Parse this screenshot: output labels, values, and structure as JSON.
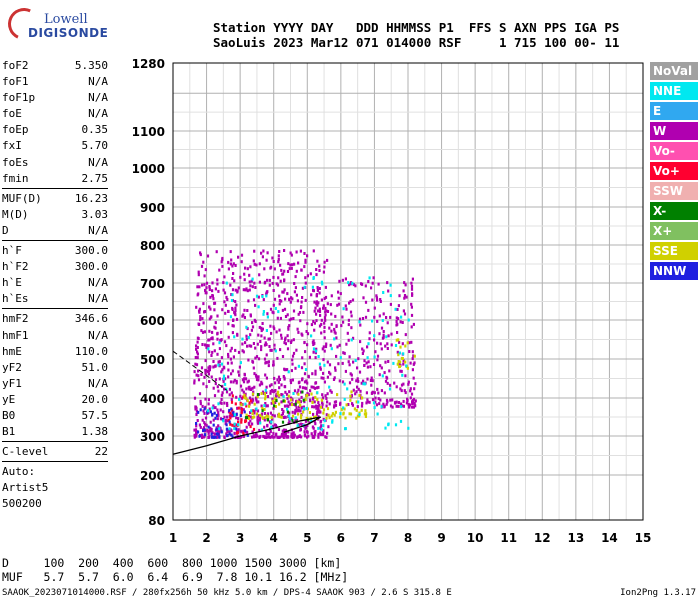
{
  "logo": {
    "line1": "Lowell",
    "line2": "DIGISONDE"
  },
  "header": {
    "line1": "Station YYYY DAY   DDD HHMMSS P1  FFS S AXN PPS IGA PS",
    "line2": "SaoLuis 2023 Mar12 071 014000 RSF     1 715 100 00- 11"
  },
  "params": {
    "group1": [
      {
        "label": "foF2",
        "value": "5.350"
      },
      {
        "label": "foF1",
        "value": "N/A"
      },
      {
        "label": "foF1p",
        "value": "N/A"
      },
      {
        "label": "foE",
        "value": "N/A"
      },
      {
        "label": "foEp",
        "value": "0.35"
      },
      {
        "label": "fxI",
        "value": "5.70"
      },
      {
        "label": "foEs",
        "value": "N/A"
      },
      {
        "label": "fmin",
        "value": "2.75"
      }
    ],
    "group2": [
      {
        "label": "MUF(D)",
        "value": "16.23"
      },
      {
        "label": "M(D)",
        "value": "3.03"
      },
      {
        "label": "D",
        "value": "N/A"
      }
    ],
    "group3": [
      {
        "label": "h`F",
        "value": "300.0"
      },
      {
        "label": "h`F2",
        "value": "300.0"
      },
      {
        "label": "h`E",
        "value": "N/A"
      },
      {
        "label": "h`Es",
        "value": "N/A"
      }
    ],
    "group4": [
      {
        "label": "hmF2",
        "value": "346.6"
      },
      {
        "label": "hmF1",
        "value": "N/A"
      },
      {
        "label": "hmE",
        "value": "110.0"
      },
      {
        "label": "yF2",
        "value": "51.0"
      },
      {
        "label": "yF1",
        "value": "N/A"
      },
      {
        "label": "yE",
        "value": "20.0"
      },
      {
        "label": "B0",
        "value": "57.5"
      },
      {
        "label": "B1",
        "value": "1.38"
      }
    ],
    "group5": [
      {
        "label": "C-level",
        "value": "22"
      }
    ],
    "autoscale": [
      "Auto:",
      "Artist5",
      "500200"
    ]
  },
  "legend": [
    {
      "label": "NoVal",
      "color": "#a0a0a0"
    },
    {
      "label": "NNE",
      "color": "#00e8f0"
    },
    {
      "label": "E",
      "color": "#30a8f0"
    },
    {
      "label": "W",
      "color": "#b000b0"
    },
    {
      "label": "Vo-",
      "color": "#ff50b0"
    },
    {
      "label": "Vo+",
      "color": "#ff0030"
    },
    {
      "label": "SSW",
      "color": "#f0b0b0"
    },
    {
      "label": "X-",
      "color": "#008000"
    },
    {
      "label": "X+",
      "color": "#80c060"
    },
    {
      "label": "SSE",
      "color": "#d0d000"
    },
    {
      "label": "NNW",
      "color": "#2020e0"
    }
  ],
  "bottom": {
    "line1": "D     100  200  400  600  800 1000 1500 3000 [km]",
    "line2": "MUF   5.7  5.7  6.0  6.4  6.9  7.8 10.1 16.2 [MHz]"
  },
  "footer": {
    "left": "SAAOK_2023071014000.RSF / 280fx256h 50 kHz 5.0 km / DPS-4 SAAOK 903 / 2.6 S 315.8 E",
    "right": "Ion2Png 1.3.17"
  },
  "chart_data": {
    "type": "scatter",
    "title": "",
    "xlabel": "",
    "ylabel": "",
    "xlim": [
      1,
      15
    ],
    "x_ticks": [
      1,
      2,
      3,
      4,
      5,
      6,
      7,
      8,
      9,
      10,
      11,
      12,
      13,
      14,
      15
    ],
    "y_ticks": [
      80,
      200,
      300,
      400,
      500,
      600,
      700,
      800,
      900,
      1000,
      1100,
      1280
    ],
    "y_scale": "nonlinear virtual height",
    "grid": true,
    "legend_position": "right",
    "clusters": [
      {
        "name": "W",
        "f_range": [
          1.6,
          5.6
        ],
        "h_range": [
          300,
          790
        ],
        "density": 0.8
      },
      {
        "name": "W",
        "f_range": [
          5.6,
          8.2
        ],
        "h_range": [
          380,
          720
        ],
        "density": 0.5
      },
      {
        "name": "Vo+",
        "f_range": [
          2.6,
          3.4
        ],
        "h_range": [
          310,
          410
        ],
        "density": 0.6
      },
      {
        "name": "SSE",
        "f_range": [
          3.0,
          6.8
        ],
        "h_range": [
          350,
          420
        ],
        "density": 0.6
      },
      {
        "name": "SSE",
        "f_range": [
          7.6,
          8.2
        ],
        "h_range": [
          480,
          560
        ],
        "density": 0.5
      },
      {
        "name": "NNW",
        "f_range": [
          1.6,
          3.2
        ],
        "h_range": [
          300,
          380
        ],
        "density": 0.5
      },
      {
        "name": "NNE",
        "f_range": [
          2.0,
          8.0
        ],
        "h_range": [
          320,
          720
        ],
        "density": 0.08
      },
      {
        "name": "X-",
        "f_range": [
          3.0,
          5.0
        ],
        "h_range": [
          340,
          420
        ],
        "density": 0.15
      }
    ],
    "trace_curve": [
      [
        1.0,
        253
      ],
      [
        2.0,
        275
      ],
      [
        3.0,
        300
      ],
      [
        4.0,
        320
      ],
      [
        4.8,
        340
      ],
      [
        5.4,
        350
      ],
      [
        5.0,
        330
      ],
      [
        4.3,
        310
      ]
    ],
    "trace_dashed": [
      [
        1.0,
        520
      ],
      [
        1.8,
        470
      ],
      [
        2.6,
        420
      ]
    ]
  }
}
